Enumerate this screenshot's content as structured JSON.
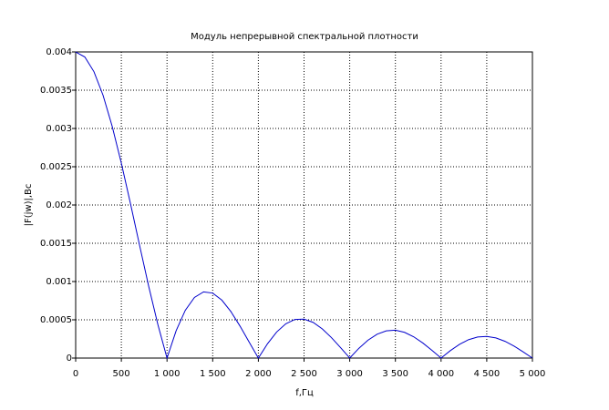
{
  "chart_data": {
    "type": "line",
    "title": "Модуль непрерывной спектральной плотности",
    "xlabel": "f,Гц",
    "ylabel": "|F(jw)|,Вс",
    "x": [
      0,
      100,
      200,
      300,
      400,
      500,
      600,
      700,
      800,
      900,
      1000,
      1100,
      1200,
      1300,
      1400,
      1500,
      1600,
      1700,
      1800,
      1900,
      2000,
      2100,
      2200,
      2300,
      2400,
      2500,
      2600,
      2700,
      2800,
      2900,
      3000,
      3100,
      3200,
      3300,
      3400,
      3500,
      3600,
      3700,
      3800,
      3900,
      4000,
      4100,
      4200,
      4300,
      4400,
      4500,
      4600,
      4700,
      4800,
      4900,
      5000
    ],
    "series": [
      {
        "color": "#0000cc",
        "values": [
          0.004,
          0.003934,
          0.003742,
          0.003433,
          0.003027,
          0.002546,
          0.002018,
          0.001471,
          0.000935,
          0.000437,
          0,
          0.000358,
          0.000624,
          0.000792,
          0.000865,
          0.000849,
          0.000757,
          0.000606,
          0.000416,
          0.000207,
          0,
          0.000187,
          0.00034,
          0.000448,
          0.000505,
          0.000509,
          0.000466,
          0.000381,
          0.000267,
          0.000136,
          0,
          0.000127,
          0.000234,
          0.000312,
          0.000356,
          0.000364,
          0.000336,
          0.000278,
          0.000197,
          0.000101,
          0,
          9.6e-05,
          0.000178,
          0.00024,
          0.000275,
          0.000283,
          0.000263,
          0.000219,
          0.000156,
          8e-05,
          0
        ]
      }
    ],
    "xlim": [
      0,
      5000
    ],
    "xticks": [
      0,
      500,
      {
        "value": 1000,
        "label": "1 000"
      },
      {
        "value": 1500,
        "label": "1 500"
      },
      {
        "value": 2000,
        "label": "2 000"
      },
      {
        "value": 2500,
        "label": "2 500"
      },
      {
        "value": 3000,
        "label": "3 000"
      },
      {
        "value": 3500,
        "label": "3 500"
      },
      {
        "value": 4000,
        "label": "4 000"
      },
      {
        "value": 4500,
        "label": "4 500"
      },
      {
        "value": 5000,
        "label": "5 000"
      }
    ],
    "ylim": [
      0,
      0.004
    ],
    "yticks": [
      0,
      0.0005,
      0.001,
      0.0015,
      0.002,
      0.0025,
      0.003,
      0.0035,
      0.004
    ],
    "grid": true
  }
}
